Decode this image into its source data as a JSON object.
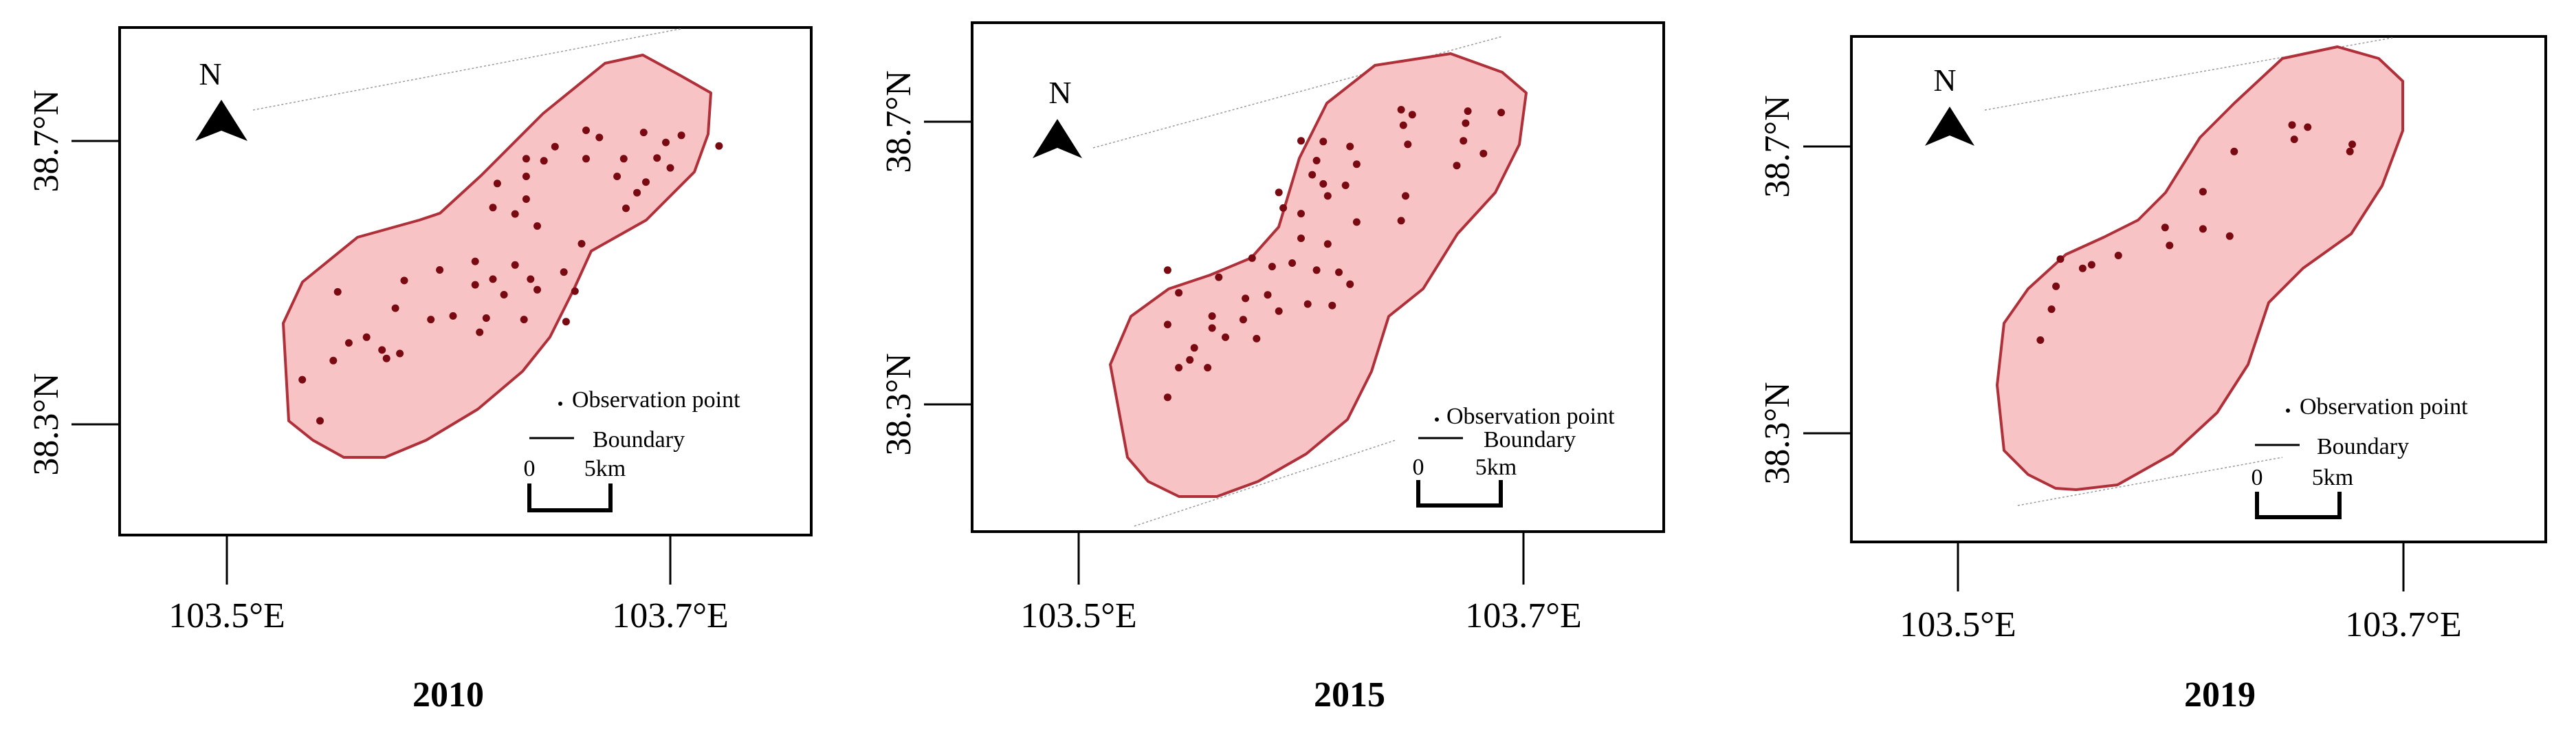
{
  "colors": {
    "region_fill": "#f8c3c5",
    "region_stroke": "#b0303a",
    "point": "#7a0a12",
    "frame": "#000000"
  },
  "icons": [
    "north-arrow-icon",
    "scale-bar-icon"
  ],
  "panels": [
    {
      "year": "2010",
      "north_label": "N",
      "legend_point": "Observation point",
      "legend_boundary": "Boundary",
      "scale_zero": "0",
      "scale_dist": "5km",
      "lat_labels": [
        "38.7°N",
        "38.3°N"
      ],
      "lon_labels": [
        "103.5°E",
        "103.7°E"
      ],
      "points": [
        [
          103.662,
          38.715
        ],
        [
          103.668,
          38.705
        ],
        [
          103.688,
          38.712
        ],
        [
          103.705,
          38.708
        ],
        [
          103.698,
          38.698
        ],
        [
          103.722,
          38.693
        ],
        [
          103.648,
          38.692
        ],
        [
          103.635,
          38.675
        ],
        [
          103.643,
          38.672
        ],
        [
          103.662,
          38.675
        ],
        [
          103.679,
          38.675
        ],
        [
          103.694,
          38.676
        ],
        [
          103.7,
          38.662
        ],
        [
          103.635,
          38.65
        ],
        [
          103.622,
          38.64
        ],
        [
          103.676,
          38.65
        ],
        [
          103.689,
          38.642
        ],
        [
          103.685,
          38.627
        ],
        [
          103.635,
          38.618
        ],
        [
          103.62,
          38.606
        ],
        [
          103.63,
          38.597
        ],
        [
          103.68,
          38.605
        ],
        [
          103.64,
          38.58
        ],
        [
          103.66,
          38.555
        ],
        [
          103.612,
          38.53
        ],
        [
          103.63,
          38.525
        ],
        [
          103.596,
          38.518
        ],
        [
          103.62,
          38.505
        ],
        [
          103.637,
          38.505
        ],
        [
          103.652,
          38.515
        ],
        [
          103.58,
          38.503
        ],
        [
          103.612,
          38.497
        ],
        [
          103.64,
          38.49
        ],
        [
          103.625,
          38.483
        ],
        [
          103.657,
          38.488
        ],
        [
          103.55,
          38.487
        ],
        [
          103.576,
          38.464
        ],
        [
          103.602,
          38.453
        ],
        [
          103.617,
          38.45
        ],
        [
          103.592,
          38.448
        ],
        [
          103.634,
          38.448
        ],
        [
          103.614,
          38.43
        ],
        [
          103.653,
          38.445
        ],
        [
          103.555,
          38.415
        ],
        [
          103.563,
          38.423
        ],
        [
          103.57,
          38.405
        ],
        [
          103.578,
          38.4
        ],
        [
          103.548,
          38.39
        ],
        [
          103.572,
          38.393
        ],
        [
          103.534,
          38.363
        ],
        [
          103.542,
          38.305
        ]
      ]
    },
    {
      "year": "2015",
      "north_label": "N",
      "legend_point": "Observation point",
      "legend_boundary": "Boundary",
      "scale_zero": "0",
      "scale_dist": "5km",
      "lat_labels": [
        "38.7°N",
        "38.3°N"
      ],
      "lon_labels": [
        "103.5°E",
        "103.7°E"
      ],
      "points": [
        [
          103.645,
          38.717
        ],
        [
          103.65,
          38.71
        ],
        [
          103.675,
          38.715
        ],
        [
          103.69,
          38.713
        ],
        [
          103.674,
          38.698
        ],
        [
          103.646,
          38.695
        ],
        [
          103.6,
          38.673
        ],
        [
          103.61,
          38.672
        ],
        [
          103.622,
          38.665
        ],
        [
          103.648,
          38.668
        ],
        [
          103.673,
          38.673
        ],
        [
          103.682,
          38.655
        ],
        [
          103.607,
          38.645
        ],
        [
          103.625,
          38.64
        ],
        [
          103.67,
          38.638
        ],
        [
          103.605,
          38.625
        ],
        [
          103.61,
          38.612
        ],
        [
          103.62,
          38.61
        ],
        [
          103.59,
          38.6
        ],
        [
          103.612,
          38.595
        ],
        [
          103.647,
          38.595
        ],
        [
          103.592,
          38.578
        ],
        [
          103.6,
          38.57
        ],
        [
          103.645,
          38.56
        ],
        [
          103.625,
          38.558
        ],
        [
          103.6,
          38.535
        ],
        [
          103.612,
          38.527
        ],
        [
          103.578,
          38.507
        ],
        [
          103.596,
          38.5
        ],
        [
          103.587,
          38.495
        ],
        [
          103.607,
          38.49
        ],
        [
          103.617,
          38.487
        ],
        [
          103.622,
          38.47
        ],
        [
          103.54,
          38.49
        ],
        [
          103.563,
          38.48
        ],
        [
          103.545,
          38.458
        ],
        [
          103.575,
          38.45
        ],
        [
          103.585,
          38.455
        ],
        [
          103.603,
          38.442
        ],
        [
          103.614,
          38.44
        ],
        [
          103.59,
          38.432
        ],
        [
          103.56,
          38.425
        ],
        [
          103.574,
          38.42
        ],
        [
          103.54,
          38.413
        ],
        [
          103.56,
          38.408
        ],
        [
          103.566,
          38.395
        ],
        [
          103.552,
          38.38
        ],
        [
          103.58,
          38.393
        ],
        [
          103.55,
          38.363
        ],
        [
          103.558,
          38.352
        ],
        [
          103.545,
          38.352
        ],
        [
          103.54,
          38.31
        ]
      ]
    },
    {
      "year": "2019",
      "north_label": "N",
      "legend_point": "Observation point",
      "legend_boundary": "Boundary",
      "scale_zero": "0",
      "scale_dist": "5km",
      "lat_labels": [
        "38.7°N",
        "38.3°N"
      ],
      "lon_labels": [
        "103.5°E",
        "103.7°E"
      ],
      "points": [
        [
          103.65,
          38.73
        ],
        [
          103.657,
          38.727
        ],
        [
          103.651,
          38.71
        ],
        [
          103.677,
          38.703
        ],
        [
          103.676,
          38.693
        ],
        [
          103.624,
          38.693
        ],
        [
          103.61,
          38.637
        ],
        [
          103.593,
          38.587
        ],
        [
          103.61,
          38.585
        ],
        [
          103.622,
          38.575
        ],
        [
          103.595,
          38.562
        ],
        [
          103.572,
          38.548
        ],
        [
          103.546,
          38.543
        ],
        [
          103.56,
          38.535
        ],
        [
          103.556,
          38.53
        ],
        [
          103.544,
          38.505
        ],
        [
          103.542,
          38.473
        ],
        [
          103.537,
          38.43
        ]
      ]
    }
  ]
}
